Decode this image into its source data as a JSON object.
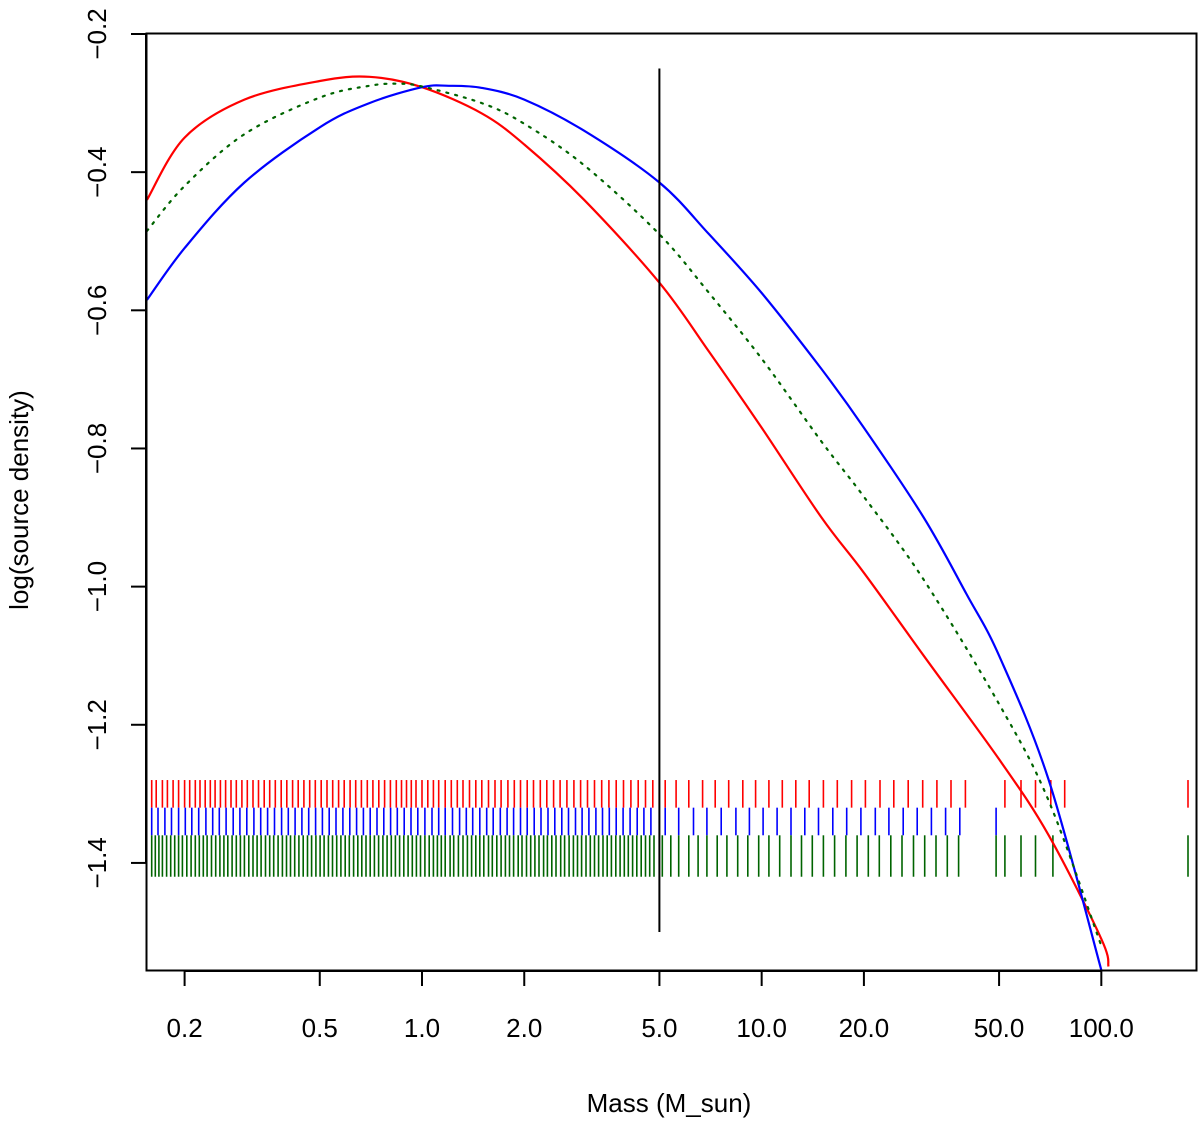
{
  "chart_data": {
    "type": "line",
    "title": "",
    "xlabel": "Mass (M_sun)",
    "ylabel": "log(source density)",
    "xscale": "log",
    "xlim": [
      0.155,
      190
    ],
    "ylim": [
      -1.555,
      -0.2
    ],
    "grid": false,
    "x_ticks": [
      {
        "value": 0.2,
        "label": "0.2"
      },
      {
        "value": 0.5,
        "label": "0.5"
      },
      {
        "value": 1.0,
        "label": "1.0"
      },
      {
        "value": 2.0,
        "label": "2.0"
      },
      {
        "value": 5.0,
        "label": "5.0"
      },
      {
        "value": 10.0,
        "label": "10.0"
      },
      {
        "value": 20.0,
        "label": "20.0"
      },
      {
        "value": 50.0,
        "label": "50.0"
      },
      {
        "value": 100.0,
        "label": "100.0"
      }
    ],
    "y_ticks": [
      {
        "value": -0.2,
        "label": "−0.2"
      },
      {
        "value": -0.4,
        "label": "−0.4"
      },
      {
        "value": -0.6,
        "label": "−0.6"
      },
      {
        "value": -0.8,
        "label": "−0.8"
      },
      {
        "value": -1.0,
        "label": "−1.0"
      },
      {
        "value": -1.2,
        "label": "−1.2"
      },
      {
        "value": -1.4,
        "label": "−1.4"
      }
    ],
    "vline": {
      "x": 5.0,
      "y_from": -1.5,
      "y_to": -0.25,
      "color": "#000000"
    },
    "series": [
      {
        "color": "#ff0000",
        "style": "solid",
        "x": [
          0.155,
          0.2,
          0.3,
          0.5,
          0.7,
          1.0,
          1.5,
          2.0,
          3.0,
          5.0,
          7.0,
          10.0,
          15.0,
          20.0,
          30.0,
          50.0,
          70.0,
          100.0,
          105.0
        ],
        "y": [
          -0.44,
          -0.35,
          -0.295,
          -0.268,
          -0.262,
          -0.277,
          -0.315,
          -0.36,
          -0.44,
          -0.56,
          -0.66,
          -0.77,
          -0.9,
          -0.98,
          -1.1,
          -1.25,
          -1.36,
          -1.51,
          -1.55
        ]
      },
      {
        "color": "#0000ff",
        "style": "solid",
        "x": [
          0.155,
          0.2,
          0.3,
          0.5,
          0.7,
          1.0,
          1.2,
          1.5,
          2.0,
          3.0,
          5.0,
          7.0,
          10.0,
          15.0,
          20.0,
          30.0,
          40.0,
          50.0,
          70.0,
          100.0
        ],
        "y": [
          -0.585,
          -0.51,
          -0.415,
          -0.335,
          -0.3,
          -0.277,
          -0.275,
          -0.278,
          -0.295,
          -0.34,
          -0.415,
          -0.49,
          -0.575,
          -0.685,
          -0.77,
          -0.9,
          -1.01,
          -1.1,
          -1.28,
          -1.555
        ]
      },
      {
        "color": "#006400",
        "style": "dotted",
        "x": [
          0.155,
          0.2,
          0.3,
          0.5,
          0.7,
          0.85,
          1.0,
          1.5,
          2.0,
          3.0,
          5.0,
          7.0,
          10.0,
          15.0,
          20.0,
          30.0,
          50.0,
          70.0,
          100.0
        ],
        "y": [
          -0.485,
          -0.42,
          -0.345,
          -0.292,
          -0.275,
          -0.272,
          -0.276,
          -0.3,
          -0.33,
          -0.39,
          -0.49,
          -0.575,
          -0.67,
          -0.79,
          -0.87,
          -0.99,
          -1.17,
          -1.31,
          -1.52
        ]
      }
    ],
    "rugs": [
      {
        "color": "#ff0000",
        "y_top": -1.28,
        "y_bottom": -1.32,
        "x": [
          0.16,
          0.165,
          0.172,
          0.178,
          0.185,
          0.192,
          0.2,
          0.207,
          0.215,
          0.222,
          0.23,
          0.238,
          0.246,
          0.255,
          0.264,
          0.274,
          0.284,
          0.295,
          0.306,
          0.318,
          0.33,
          0.343,
          0.356,
          0.37,
          0.385,
          0.4,
          0.416,
          0.432,
          0.449,
          0.467,
          0.485,
          0.505,
          0.525,
          0.546,
          0.568,
          0.59,
          0.614,
          0.638,
          0.663,
          0.69,
          0.717,
          0.746,
          0.776,
          0.807,
          0.84,
          0.87,
          0.9,
          0.93,
          0.96,
          1.0,
          1.04,
          1.08,
          1.12,
          1.17,
          1.22,
          1.27,
          1.32,
          1.38,
          1.44,
          1.5,
          1.57,
          1.64,
          1.71,
          1.79,
          1.87,
          1.95,
          2.04,
          2.13,
          2.23,
          2.33,
          2.44,
          2.55,
          2.67,
          2.8,
          2.93,
          3.07,
          3.22,
          3.38,
          3.55,
          3.73,
          3.92,
          4.12,
          4.33,
          4.55,
          4.78,
          5.2,
          5.6,
          6.1,
          6.7,
          7.3,
          8.0,
          8.8,
          9.6,
          10.5,
          11.5,
          12.6,
          13.8,
          15.2,
          16.7,
          18.4,
          20.2,
          22.3,
          24.5,
          27.0,
          29.8,
          32.8,
          36.1,
          39.8,
          52.0,
          58.0,
          64.0,
          71.0,
          78.0,
          180.0
        ]
      },
      {
        "color": "#0000ff",
        "y_top": -1.32,
        "y_bottom": -1.36,
        "x": [
          0.16,
          0.167,
          0.175,
          0.183,
          0.192,
          0.201,
          0.21,
          0.22,
          0.231,
          0.242,
          0.253,
          0.265,
          0.278,
          0.291,
          0.305,
          0.32,
          0.335,
          0.351,
          0.368,
          0.386,
          0.404,
          0.423,
          0.443,
          0.464,
          0.486,
          0.509,
          0.533,
          0.558,
          0.585,
          0.613,
          0.642,
          0.672,
          0.704,
          0.737,
          0.772,
          0.808,
          0.846,
          0.886,
          0.928,
          0.972,
          1.02,
          1.07,
          1.12,
          1.17,
          1.23,
          1.29,
          1.35,
          1.41,
          1.48,
          1.55,
          1.62,
          1.7,
          1.78,
          1.86,
          1.95,
          2.04,
          2.14,
          2.24,
          2.35,
          2.46,
          2.58,
          2.7,
          2.83,
          2.96,
          3.1,
          3.25,
          3.4,
          3.56,
          3.73,
          3.91,
          4.1,
          4.3,
          4.5,
          4.72,
          5.2,
          5.7,
          6.3,
          6.9,
          7.6,
          8.4,
          9.2,
          10.1,
          11.1,
          12.2,
          13.4,
          14.7,
          16.2,
          17.8,
          19.6,
          21.6,
          23.7,
          26.1,
          28.7,
          31.6,
          34.8,
          38.3,
          49.0
        ]
      },
      {
        "color": "#006400",
        "y_top": -1.36,
        "y_bottom": -1.42,
        "x": [
          0.16,
          0.164,
          0.168,
          0.172,
          0.177,
          0.182,
          0.187,
          0.192,
          0.197,
          0.203,
          0.209,
          0.215,
          0.221,
          0.227,
          0.233,
          0.24,
          0.247,
          0.254,
          0.261,
          0.268,
          0.276,
          0.284,
          0.292,
          0.3,
          0.309,
          0.318,
          0.327,
          0.336,
          0.346,
          0.356,
          0.366,
          0.377,
          0.388,
          0.399,
          0.41,
          0.422,
          0.434,
          0.447,
          0.46,
          0.473,
          0.487,
          0.501,
          0.515,
          0.53,
          0.545,
          0.561,
          0.577,
          0.594,
          0.611,
          0.629,
          0.647,
          0.665,
          0.684,
          0.704,
          0.724,
          0.745,
          0.767,
          0.789,
          0.812,
          0.835,
          0.859,
          0.884,
          0.91,
          0.936,
          0.963,
          0.99,
          1.02,
          1.05,
          1.08,
          1.11,
          1.14,
          1.17,
          1.21,
          1.24,
          1.28,
          1.32,
          1.36,
          1.4,
          1.44,
          1.48,
          1.52,
          1.57,
          1.61,
          1.66,
          1.71,
          1.76,
          1.81,
          1.86,
          1.92,
          1.97,
          2.03,
          2.09,
          2.15,
          2.21,
          2.28,
          2.34,
          2.41,
          2.48,
          2.56,
          2.63,
          2.71,
          2.79,
          2.87,
          2.95,
          3.04,
          3.13,
          3.22,
          3.31,
          3.41,
          3.51,
          3.61,
          3.72,
          3.83,
          3.94,
          4.05,
          4.17,
          4.29,
          4.42,
          4.55,
          4.68,
          4.82,
          5.1,
          5.4,
          5.7,
          6.1,
          6.5,
          6.9,
          7.4,
          7.9,
          8.5,
          9.1,
          9.8,
          10.5,
          11.3,
          12.2,
          13.1,
          14.1,
          15.2,
          16.4,
          17.7,
          19.1,
          20.6,
          22.2,
          24.0,
          25.9,
          28.0,
          30.2,
          32.6,
          35.2,
          38.0,
          49.0,
          52.0,
          58.0,
          64.0,
          72.0,
          180.0
        ]
      }
    ]
  }
}
